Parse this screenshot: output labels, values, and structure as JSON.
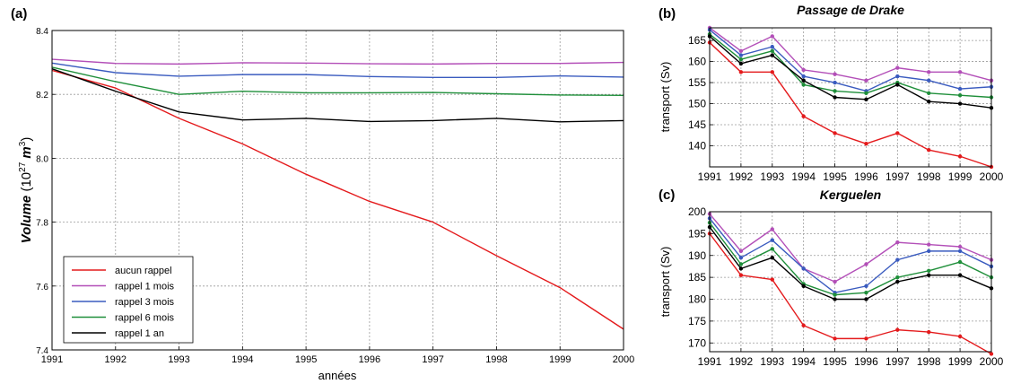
{
  "chart_data": [
    {
      "type": "line",
      "panel_label": "(a)",
      "title": "",
      "xlabel": "années",
      "ylabel_main": "Volume",
      "ylabel_unit_open": " (10",
      "ylabel_exp": "27",
      "ylabel_unit_mid": " m",
      "ylabel_exp2": "3",
      "ylabel_unit_close": ")",
      "xlim": [
        1991,
        2000
      ],
      "ylim": [
        7.4,
        8.4
      ],
      "xticks": [
        "1991",
        "1992",
        "1993",
        "1994",
        "1995",
        "1996",
        "1997",
        "1998",
        "1999",
        "2000"
      ],
      "yticks": [
        "7.4",
        "7.6",
        "7.8",
        "8.0",
        "8.2",
        "8.4"
      ],
      "grid": true,
      "legend_position": "lower-left",
      "x": [
        1991,
        1992,
        1993,
        1994,
        1995,
        1996,
        1997,
        1998,
        1999,
        2000
      ],
      "series": [
        {
          "name": "aucun rappel",
          "color": "#e41a1c",
          "values": [
            8.275,
            8.22,
            8.125,
            8.045,
            7.95,
            7.865,
            7.8,
            7.695,
            7.595,
            7.465
          ]
        },
        {
          "name": "rappel 1 mois",
          "color": "#b34fb8",
          "values": [
            8.31,
            8.297,
            8.295,
            8.299,
            8.298,
            8.296,
            8.295,
            8.297,
            8.297,
            8.3
          ]
        },
        {
          "name": "rappel 3 mois",
          "color": "#3a5bbf",
          "values": [
            8.298,
            8.268,
            8.257,
            8.262,
            8.262,
            8.256,
            8.253,
            8.253,
            8.258,
            8.254
          ]
        },
        {
          "name": "rappel 6 mois",
          "color": "#1f8f3a",
          "values": [
            8.285,
            8.24,
            8.2,
            8.21,
            8.205,
            8.205,
            8.206,
            8.202,
            8.198,
            8.197
          ]
        },
        {
          "name": "rappel 1 an",
          "color": "#000000",
          "values": [
            8.28,
            8.21,
            8.145,
            8.12,
            8.125,
            8.115,
            8.118,
            8.125,
            8.114,
            8.118
          ]
        }
      ]
    },
    {
      "type": "line",
      "panel_label": "(b)",
      "title": "Passage de Drake",
      "xlabel": "",
      "ylabel": "transport (Sv)",
      "xlim": [
        1991,
        2000
      ],
      "ylim": [
        135,
        168
      ],
      "xticks": [
        "1991",
        "1992",
        "1993",
        "1994",
        "1995",
        "1996",
        "1997",
        "1998",
        "1999",
        "2000"
      ],
      "yticks": [
        "140",
        "145",
        "150",
        "155",
        "160",
        "165"
      ],
      "grid": true,
      "x": [
        1991,
        1992,
        1993,
        1994,
        1995,
        1996,
        1997,
        1998,
        1999,
        2000
      ],
      "series": [
        {
          "name": "aucun rappel",
          "color": "#e41a1c",
          "values": [
            164.5,
            157.5,
            157.5,
            147.0,
            143.0,
            140.5,
            143.0,
            139.0,
            137.5,
            135.0
          ]
        },
        {
          "name": "rappel 1 mois",
          "color": "#b34fb8",
          "values": [
            168.0,
            162.5,
            166.0,
            158.0,
            157.0,
            155.5,
            158.5,
            157.5,
            157.5,
            155.5
          ]
        },
        {
          "name": "rappel 3 mois",
          "color": "#3a5bbf",
          "values": [
            167.5,
            161.5,
            163.5,
            156.5,
            155.0,
            153.0,
            156.5,
            155.5,
            153.5,
            154.0
          ]
        },
        {
          "name": "rappel 6 mois",
          "color": "#1f8f3a",
          "values": [
            166.5,
            160.5,
            162.5,
            154.5,
            153.0,
            152.5,
            155.0,
            152.5,
            152.0,
            151.5
          ]
        },
        {
          "name": "rappel 1 an",
          "color": "#000000",
          "values": [
            166.0,
            159.5,
            161.5,
            155.5,
            151.5,
            151.0,
            154.5,
            150.5,
            150.0,
            149.0
          ]
        }
      ]
    },
    {
      "type": "line",
      "panel_label": "(c)",
      "title": "Kerguelen",
      "xlabel": "",
      "ylabel": "transport (Sv)",
      "xlim": [
        1991,
        2000
      ],
      "ylim": [
        168,
        200
      ],
      "xticks": [
        "1991",
        "1992",
        "1993",
        "1994",
        "1995",
        "1996",
        "1997",
        "1998",
        "1999",
        "2000"
      ],
      "yticks": [
        "170",
        "175",
        "180",
        "185",
        "190",
        "195",
        "200"
      ],
      "grid": true,
      "x": [
        1991,
        1992,
        1993,
        1994,
        1995,
        1996,
        1997,
        1998,
        1999,
        2000
      ],
      "series": [
        {
          "name": "aucun rappel",
          "color": "#e41a1c",
          "values": [
            195.0,
            185.5,
            184.5,
            174.0,
            171.0,
            171.0,
            173.0,
            172.5,
            171.5,
            167.5
          ]
        },
        {
          "name": "rappel 1 mois",
          "color": "#b34fb8",
          "values": [
            199.5,
            191.0,
            196.0,
            187.0,
            184.0,
            188.0,
            193.0,
            192.5,
            192.0,
            189.0
          ]
        },
        {
          "name": "rappel 3 mois",
          "color": "#3a5bbf",
          "values": [
            198.5,
            189.5,
            193.5,
            187.0,
            181.5,
            183.0,
            189.0,
            191.0,
            191.0,
            187.5
          ]
        },
        {
          "name": "rappel 6 mois",
          "color": "#1f8f3a",
          "values": [
            197.5,
            188.0,
            191.5,
            183.5,
            181.0,
            181.5,
            185.0,
            186.5,
            188.5,
            185.0
          ]
        },
        {
          "name": "rappel 1 an",
          "color": "#000000",
          "values": [
            196.5,
            187.0,
            189.5,
            183.0,
            180.0,
            180.0,
            184.0,
            185.5,
            185.5,
            182.5
          ]
        }
      ]
    }
  ]
}
